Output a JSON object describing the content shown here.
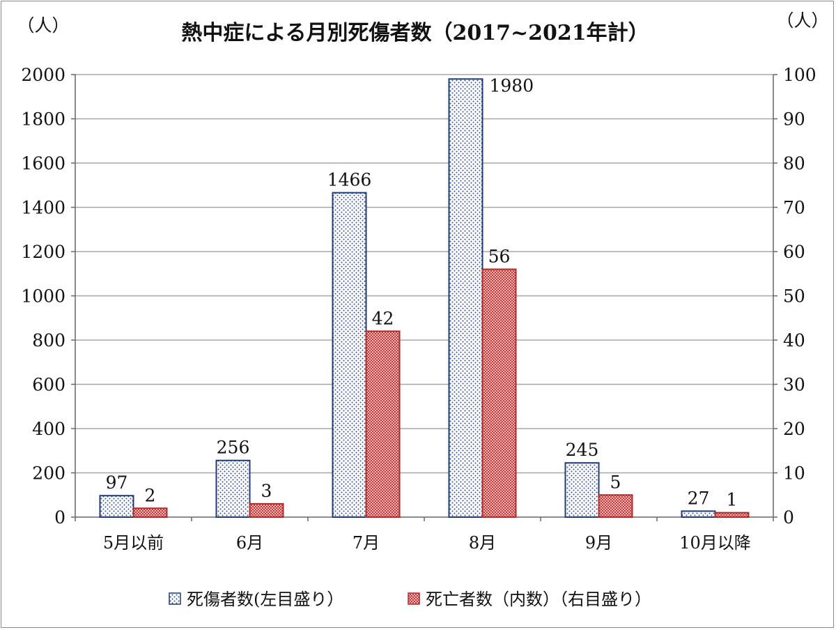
{
  "chart_data": {
    "type": "bar",
    "title": "熱中症による月別死傷者数（2017~2021年計）",
    "left_unit": "（人）",
    "right_unit": "（人）",
    "categories": [
      "5月以前",
      "6月",
      "7月",
      "8月",
      "9月",
      "10月以降"
    ],
    "series": [
      {
        "name": "死傷者数(左目盛り）",
        "axis": "left",
        "values": [
          97,
          256,
          1466,
          1980,
          245,
          27
        ],
        "labels": [
          "97",
          "256",
          "1466",
          "1980",
          "245",
          "27"
        ],
        "pattern": "dots",
        "stroke": "#1f3a7a",
        "fill_dot": "#2b4a8c"
      },
      {
        "name": "死亡者数（内数）（右目盛り）",
        "axis": "right",
        "values": [
          2,
          3,
          42,
          56,
          5,
          1
        ],
        "labels": [
          "2",
          "3",
          "42",
          "56",
          "5",
          "1"
        ],
        "pattern": "checker",
        "stroke": "#b02a2a",
        "fill_dot": "#c23b3b"
      }
    ],
    "y_left": {
      "ylim": [
        0,
        2000
      ],
      "ticks": [
        "0",
        "200",
        "400",
        "600",
        "800",
        "1000",
        "1200",
        "1400",
        "1600",
        "1800",
        "2000"
      ]
    },
    "y_right": {
      "ylim": [
        0,
        100
      ],
      "ticks": [
        "0",
        "10",
        "20",
        "30",
        "40",
        "50",
        "60",
        "70",
        "80",
        "90",
        "100"
      ]
    },
    "grid": true,
    "legend_position": "bottom"
  }
}
